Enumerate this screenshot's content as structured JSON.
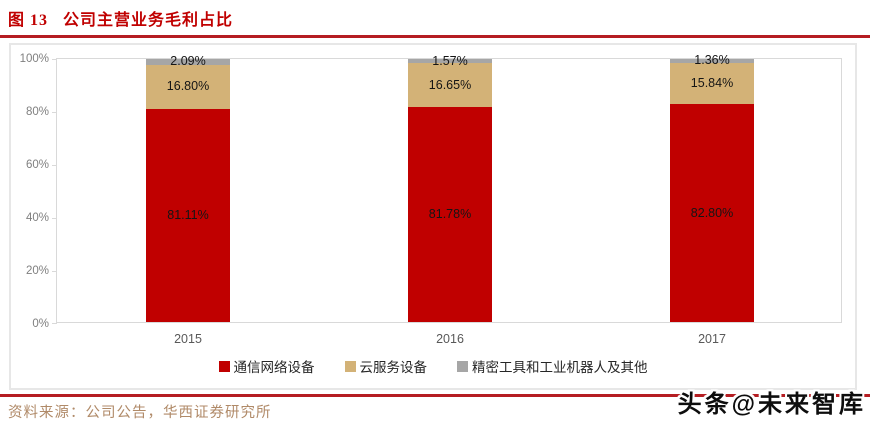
{
  "figure": {
    "title": "图 13   公司主营业务毛利占比",
    "source": "资料来源：公司公告，华西证券研究所",
    "watermark": "头条@未来智库"
  },
  "colors": {
    "accent_red": "#B51D22",
    "series_red": "#C00000",
    "series_tan": "#D3B277",
    "series_gray": "#A6A6A6",
    "axis_text": "#7F7F7F",
    "category_text": "#595959",
    "value_label_text": "#151515",
    "source_text": "#B08A68",
    "plot_border": "#D9D9D9"
  },
  "chart_data": {
    "type": "bar",
    "stacked": true,
    "percent_stacked": true,
    "title": "公司主营业务毛利占比",
    "categories": [
      "2015",
      "2016",
      "2017"
    ],
    "series": [
      {
        "name": "通信网络设备",
        "color_key": "series_red",
        "values": [
          81.11,
          81.78,
          82.8
        ]
      },
      {
        "name": "云服务设备",
        "color_key": "series_tan",
        "values": [
          16.8,
          16.65,
          15.84
        ]
      },
      {
        "name": "精密工具和工业机器人及其他",
        "color_key": "series_gray",
        "values": [
          2.09,
          1.57,
          1.36
        ]
      }
    ],
    "xlabel": "",
    "ylabel": "",
    "ylim": [
      0,
      100
    ],
    "yticks": [
      "0%",
      "20%",
      "40%",
      "60%",
      "80%",
      "100%"
    ],
    "ytick_values": [
      0,
      20,
      40,
      60,
      80,
      100
    ],
    "value_label_format": "0.00%",
    "grid": false,
    "legend_position": "bottom"
  }
}
